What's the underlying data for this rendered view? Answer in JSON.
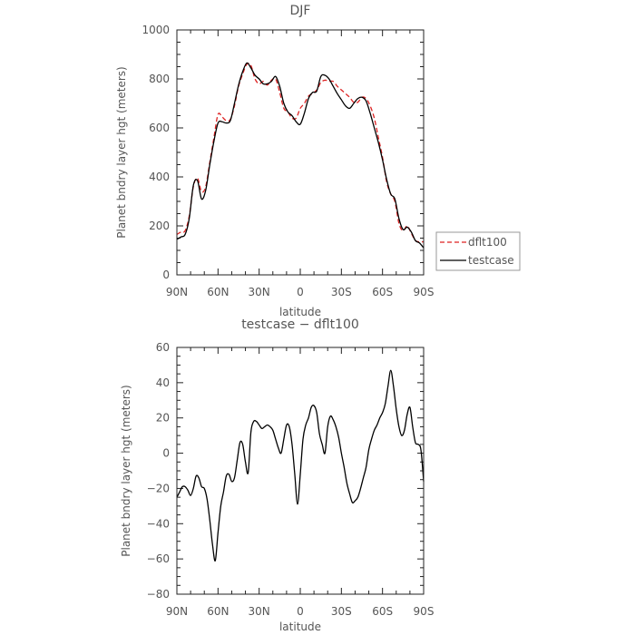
{
  "chart_data": [
    {
      "type": "line",
      "title": "DJF",
      "xlabel": "latitude",
      "ylabel": "Planet bndry layer hgt (meters)",
      "xlim": [
        90,
        -90
      ],
      "ylim": [
        0,
        1000
      ],
      "xticks": [
        90,
        60,
        30,
        0,
        -30,
        -60,
        -90
      ],
      "xtick_labels": [
        "90N",
        "60N",
        "30N",
        "0",
        "30S",
        "60S",
        "90S"
      ],
      "yticks": [
        0,
        200,
        400,
        600,
        800,
        1000
      ],
      "ytick_labels": [
        "0",
        "200",
        "400",
        "600",
        "800",
        "1000"
      ],
      "legend": {
        "position": "right",
        "entries": [
          "dflt100",
          "testcase"
        ]
      },
      "series": [
        {
          "name": "dflt100",
          "color": "#dd2222",
          "dash": "dashed",
          "x": [
            90,
            87,
            84,
            81,
            78,
            75,
            72,
            69,
            66,
            63,
            60,
            57,
            54,
            51,
            48,
            45,
            42,
            39,
            36,
            33,
            30,
            27,
            24,
            21,
            18,
            15,
            12,
            9,
            6,
            3,
            0,
            -3,
            -6,
            -9,
            -12,
            -15,
            -18,
            -21,
            -24,
            -27,
            -30,
            -33,
            -36,
            -39,
            -42,
            -45,
            -48,
            -51,
            -54,
            -57,
            -60,
            -63,
            -66,
            -69,
            -72,
            -75,
            -78,
            -81,
            -84,
            -87,
            -90
          ],
          "y": [
            165,
            175,
            180,
            240,
            360,
            395,
            340,
            360,
            460,
            560,
            655,
            645,
            630,
            635,
            690,
            770,
            820,
            860,
            855,
            800,
            780,
            790,
            775,
            795,
            800,
            745,
            680,
            665,
            640,
            640,
            680,
            700,
            730,
            740,
            755,
            785,
            795,
            790,
            790,
            770,
            755,
            740,
            725,
            705,
            705,
            725,
            720,
            690,
            640,
            560,
            480,
            380,
            330,
            300,
            210,
            180,
            200,
            170,
            140,
            135,
            135
          ]
        },
        {
          "name": "testcase",
          "color": "#000000",
          "dash": "solid",
          "x": [
            90,
            87,
            84,
            81,
            78,
            75,
            72,
            69,
            66,
            63,
            60,
            57,
            54,
            51,
            48,
            45,
            42,
            39,
            36,
            33,
            30,
            27,
            24,
            21,
            18,
            15,
            12,
            9,
            6,
            3,
            0,
            -3,
            -6,
            -9,
            -12,
            -15,
            -18,
            -21,
            -24,
            -27,
            -30,
            -33,
            -36,
            -39,
            -42,
            -45,
            -48,
            -51,
            -54,
            -57,
            -60,
            -63,
            -66,
            -69,
            -72,
            -75,
            -78,
            -81,
            -84,
            -87,
            -90
          ],
          "y": [
            145,
            155,
            165,
            230,
            365,
            385,
            310,
            345,
            450,
            545,
            620,
            625,
            620,
            630,
            700,
            775,
            830,
            865,
            845,
            815,
            800,
            780,
            780,
            790,
            810,
            770,
            700,
            665,
            650,
            625,
            615,
            660,
            720,
            745,
            750,
            810,
            815,
            800,
            770,
            740,
            715,
            690,
            680,
            700,
            720,
            725,
            710,
            660,
            600,
            540,
            470,
            390,
            330,
            310,
            230,
            185,
            195,
            175,
            140,
            130,
            110
          ]
        }
      ]
    },
    {
      "type": "line",
      "title": "testcase − dflt100",
      "xlabel": "latitude",
      "ylabel": "Planet bndry layer hgt (meters)",
      "xlim": [
        90,
        -90
      ],
      "ylim": [
        -80,
        60
      ],
      "xticks": [
        90,
        60,
        30,
        0,
        -30,
        -60,
        -90
      ],
      "xtick_labels": [
        "90N",
        "60N",
        "30N",
        "0",
        "30S",
        "60S",
        "90S"
      ],
      "yticks": [
        -80,
        -60,
        -40,
        -20,
        0,
        20,
        40,
        60
      ],
      "ytick_labels": [
        "−80",
        "−60",
        "−40",
        "−20",
        "0",
        "20",
        "40",
        "60"
      ],
      "series": [
        {
          "color": "#000000",
          "dash": "solid",
          "x": [
            90,
            88,
            86,
            84,
            82,
            80,
            78,
            76,
            74,
            72,
            70,
            68,
            66,
            64,
            62,
            60,
            58,
            56,
            54,
            52,
            50,
            48,
            46,
            44,
            42,
            40,
            38,
            36,
            34,
            32,
            30,
            28,
            26,
            24,
            22,
            20,
            18,
            16,
            14,
            12,
            10,
            8,
            6,
            4,
            2,
            0,
            -2,
            -4,
            -6,
            -8,
            -10,
            -12,
            -14,
            -16,
            -18,
            -20,
            -22,
            -24,
            -26,
            -28,
            -30,
            -32,
            -34,
            -36,
            -38,
            -40,
            -42,
            -44,
            -46,
            -48,
            -50,
            -52,
            -54,
            -56,
            -58,
            -60,
            -62,
            -64,
            -66,
            -68,
            -70,
            -72,
            -74,
            -76,
            -78,
            -80,
            -82,
            -84,
            -86,
            -88,
            -90
          ],
          "y": [
            -25,
            -22,
            -19,
            -19,
            -21,
            -24,
            -20,
            -13,
            -14,
            -19,
            -20,
            -26,
            -38,
            -52,
            -61,
            -45,
            -30,
            -22,
            -13,
            -12,
            -16,
            -14,
            -4,
            6,
            5,
            -5,
            -11,
            12,
            18,
            18,
            16,
            14,
            15,
            16,
            15,
            13,
            8,
            3,
            0,
            8,
            16,
            15,
            5,
            -12,
            -29,
            -12,
            8,
            16,
            20,
            26,
            27,
            23,
            11,
            5,
            0,
            15,
            21,
            19,
            15,
            9,
            0,
            -8,
            -17,
            -23,
            -28,
            -27,
            -25,
            -20,
            -14,
            -8,
            2,
            8,
            13,
            16,
            20,
            23,
            28,
            38,
            47,
            38,
            25,
            15,
            10,
            13,
            22,
            26,
            15,
            6,
            5,
            2,
            -16
          ]
        }
      ]
    }
  ]
}
